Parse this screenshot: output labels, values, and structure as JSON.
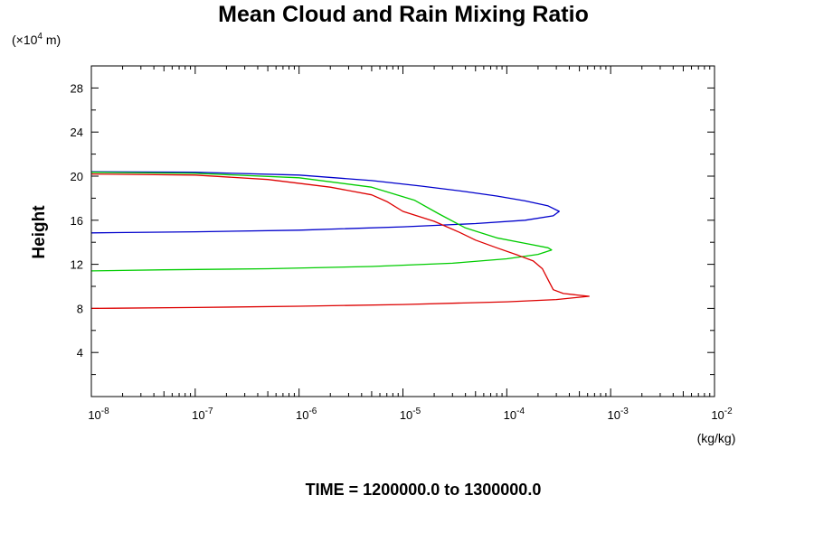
{
  "chart_data": {
    "type": "line",
    "title": "Mean Cloud and Rain Mixing Ratio",
    "ylabel": "Height",
    "y_unit_prefix": "(×10",
    "y_unit_exp": "4",
    "y_unit_suffix": " m)",
    "xlabel": "(kg/kg)",
    "footer": "TIME = 1200000.0 to 1300000.0",
    "x_scale": "log",
    "xlim": [
      1e-08,
      0.01
    ],
    "ylim": [
      0,
      30
    ],
    "x_tick_base": "10",
    "x_ticks": [
      {
        "value": 1e-08,
        "exp": "-8"
      },
      {
        "value": 1e-07,
        "exp": "-7"
      },
      {
        "value": 1e-06,
        "exp": "-6"
      },
      {
        "value": 1e-05,
        "exp": "-5"
      },
      {
        "value": 0.0001,
        "exp": "-4"
      },
      {
        "value": 0.001,
        "exp": "-3"
      },
      {
        "value": 0.01,
        "exp": "-2"
      }
    ],
    "y_ticks": [
      4,
      8,
      12,
      16,
      20,
      24,
      28
    ],
    "grid": false,
    "series": [
      {
        "color": "#0000cc",
        "points": [
          [
            1e-08,
            20.4
          ],
          [
            1e-07,
            20.35
          ],
          [
            1e-06,
            20.1
          ],
          [
            5e-06,
            19.6
          ],
          [
            1.5e-05,
            19.1
          ],
          [
            4e-05,
            18.6
          ],
          [
            8e-05,
            18.2
          ],
          [
            0.00015,
            17.75
          ],
          [
            0.00025,
            17.3
          ],
          [
            0.00032,
            16.8
          ],
          [
            0.00028,
            16.4
          ],
          [
            0.00015,
            16.0
          ],
          [
            5e-05,
            15.7
          ],
          [
            1e-05,
            15.4
          ],
          [
            1e-06,
            15.1
          ],
          [
            1e-07,
            14.95
          ],
          [
            1e-08,
            14.85
          ]
        ]
      },
      {
        "color": "#00cc00",
        "points": [
          [
            1e-08,
            20.35
          ],
          [
            1e-07,
            20.25
          ],
          [
            1e-06,
            19.85
          ],
          [
            5e-06,
            19.0
          ],
          [
            1.3e-05,
            17.8
          ],
          [
            2.2e-05,
            16.6
          ],
          [
            4e-05,
            15.3
          ],
          [
            8e-05,
            14.4
          ],
          [
            0.00015,
            13.9
          ],
          [
            0.00025,
            13.5
          ],
          [
            0.00027,
            13.3
          ],
          [
            0.0002,
            12.9
          ],
          [
            0.0001,
            12.5
          ],
          [
            3e-05,
            12.1
          ],
          [
            5e-06,
            11.8
          ],
          [
            5e-07,
            11.6
          ],
          [
            5e-08,
            11.5
          ],
          [
            1e-08,
            11.4
          ]
        ]
      },
      {
        "color": "#dd0000",
        "points": [
          [
            1e-08,
            20.2
          ],
          [
            1e-07,
            20.1
          ],
          [
            5e-07,
            19.7
          ],
          [
            2e-06,
            19.0
          ],
          [
            5e-06,
            18.3
          ],
          [
            7e-06,
            17.7
          ],
          [
            1e-05,
            16.8
          ],
          [
            2e-05,
            15.9
          ],
          [
            3.5e-05,
            14.9
          ],
          [
            5e-05,
            14.2
          ],
          [
            8e-05,
            13.5
          ],
          [
            0.00013,
            12.8
          ],
          [
            0.00018,
            12.3
          ],
          [
            0.00022,
            11.6
          ],
          [
            0.00025,
            10.6
          ],
          [
            0.00028,
            9.7
          ],
          [
            0.00035,
            9.35
          ],
          [
            0.00062,
            9.1
          ],
          [
            0.0003,
            8.8
          ],
          [
            0.0001,
            8.6
          ],
          [
            1e-05,
            8.35
          ],
          [
            1e-06,
            8.2
          ],
          [
            1e-07,
            8.08
          ],
          [
            1e-08,
            8.0
          ]
        ]
      }
    ]
  }
}
